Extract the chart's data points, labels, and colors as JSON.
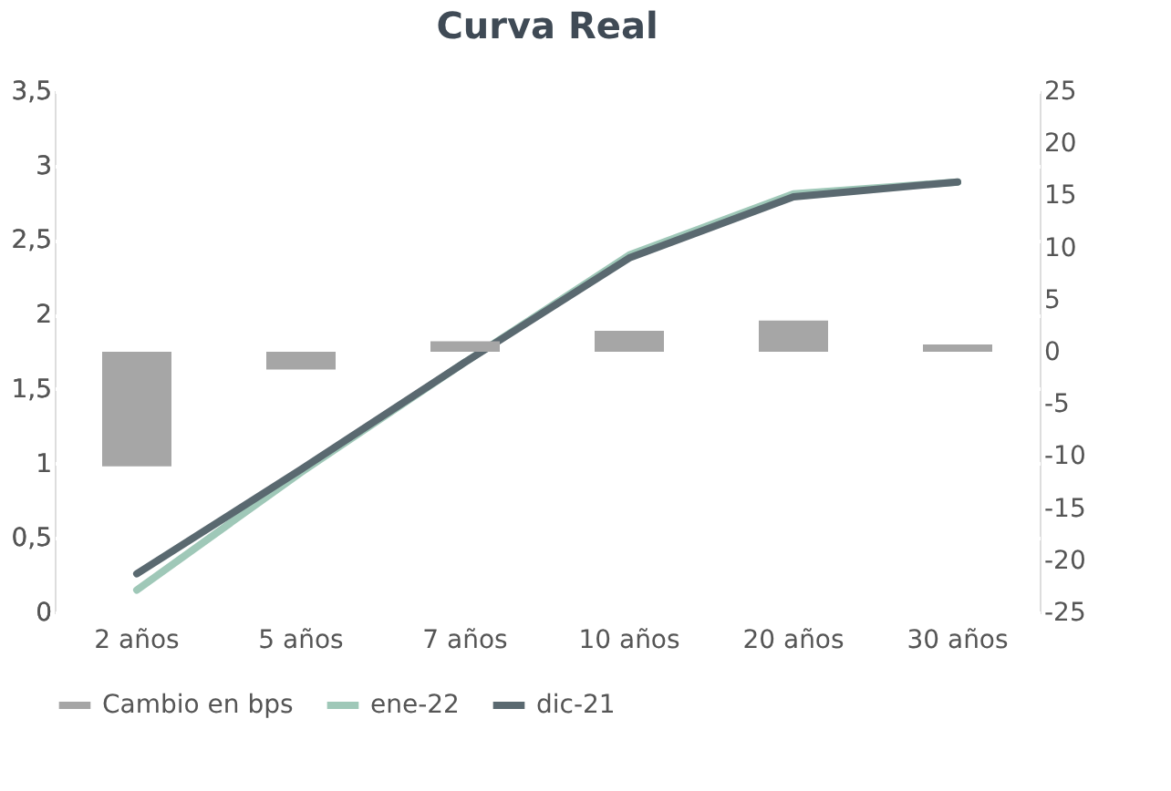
{
  "chart_data": {
    "type": "bar",
    "title": "Curva Real",
    "categories": [
      "2 años",
      "5 años",
      "7 años",
      "10 años",
      "20 años",
      "30 años"
    ],
    "series": [
      {
        "name": "Cambio en bps",
        "axis": "y2",
        "color": "#a6a6a6",
        "values": [
          -11,
          -1.7,
          1,
          2,
          3,
          0.7
        ]
      },
      {
        "name": "ene-22",
        "type": "line",
        "color": "#9fc8b8",
        "values": [
          0.15,
          0.94,
          1.68,
          2.4,
          2.81,
          2.89
        ]
      },
      {
        "name": "dic-21",
        "type": "line",
        "color": "#5a6970",
        "values": [
          0.26,
          0.96,
          1.68,
          2.38,
          2.79,
          2.89
        ]
      }
    ],
    "ylim": [
      0,
      3.5
    ],
    "yticks": [
      0,
      {
        "value": 0.5,
        "label": "0,5"
      },
      1,
      {
        "value": 1.5,
        "label": "1,5"
      },
      2,
      {
        "value": 2.5,
        "label": "2,5"
      },
      3,
      {
        "value": 3.5,
        "label": "3,5"
      }
    ],
    "y2lim": [
      -25,
      25
    ],
    "y2ticks": [
      -25,
      -20,
      -15,
      -10,
      -5,
      0,
      5,
      10,
      15,
      20,
      25
    ],
    "grid": "y",
    "legend": "bottom"
  }
}
